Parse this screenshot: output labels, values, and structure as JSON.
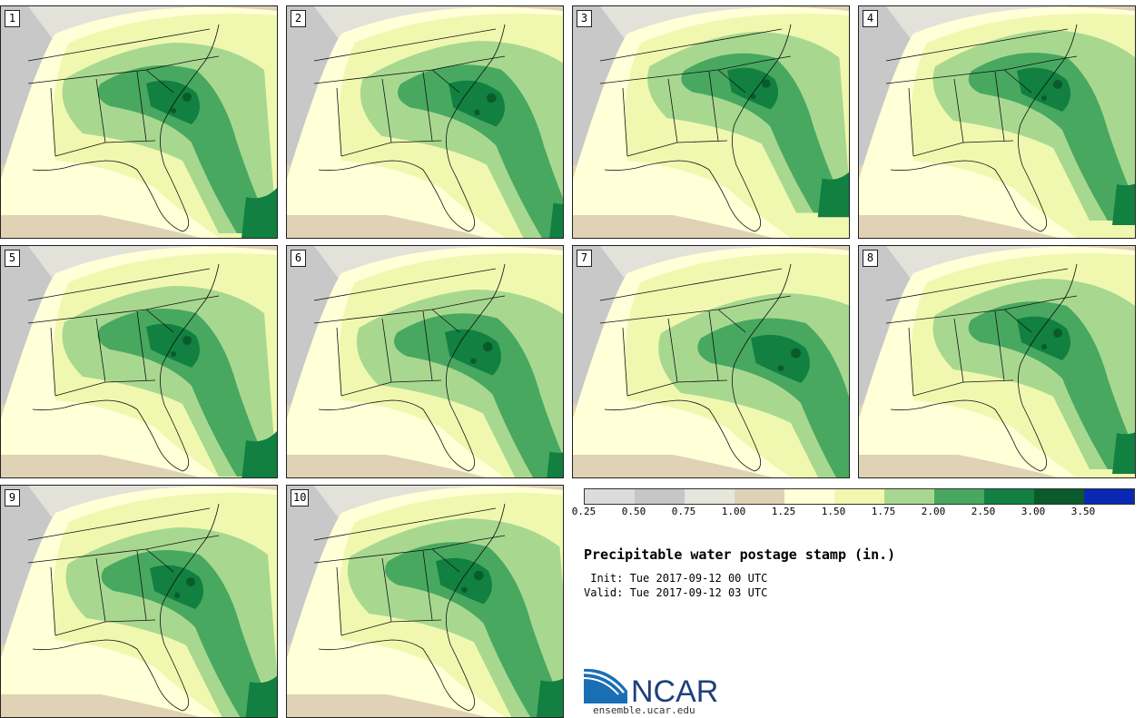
{
  "title": "Precipitable water postage stamp (in.)",
  "init_line": " Init: Tue 2017-09-12 00 UTC",
  "valid_line": "Valid: Tue 2017-09-12 03 UTC",
  "logo_text": "NCAR",
  "site": "ensemble.ucar.edu",
  "members": [
    "1",
    "2",
    "3",
    "4",
    "5",
    "6",
    "7",
    "8",
    "9",
    "10"
  ],
  "colorbar": {
    "levels": [
      "0.25",
      "0.50",
      "0.75",
      "1.00",
      "1.25",
      "1.50",
      "1.75",
      "2.00",
      "2.50",
      "3.00",
      "3.50"
    ],
    "colors": [
      "#dcdcdc",
      "#c6c6c6",
      "#e6e6dc",
      "#e0d2b4",
      "#ffffd8",
      "#f0f8b0",
      "#a8d890",
      "#48a860",
      "#118040",
      "#0a5a2c",
      "#0a28b4"
    ]
  },
  "map_colors": {
    "outer": "#e0d2b4",
    "dry_gray": "#c8c8c8",
    "light_gray": "#e2e2da",
    "pale_yellow": "#ffffd8",
    "yellow_green": "#f0f8b0",
    "light_green": "#a8d890",
    "green": "#48a860",
    "dark_green": "#118040",
    "darkest_green": "#0a5a2c"
  }
}
